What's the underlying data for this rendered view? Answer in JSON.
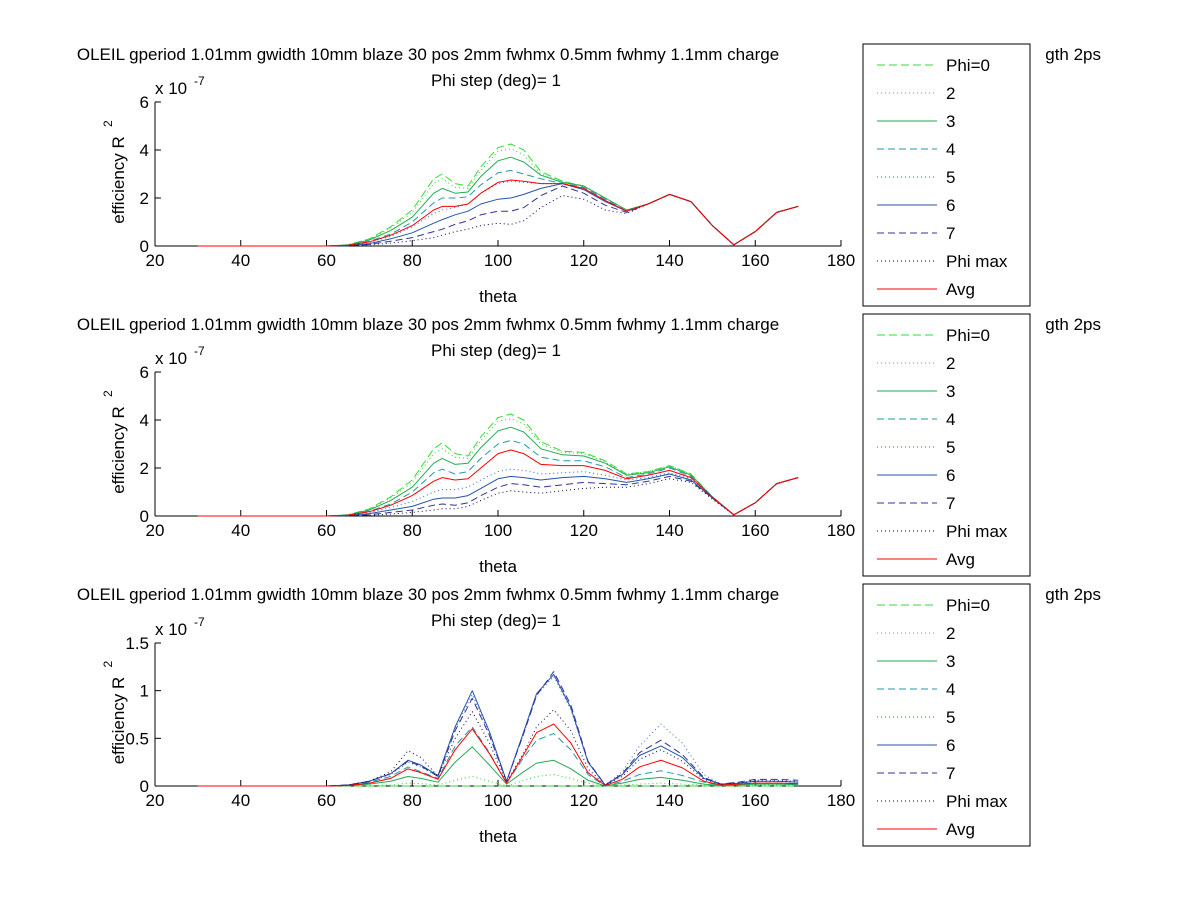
{
  "figure": {
    "title_line1": "OLEIL gperiod 1.01mm gwidth 10mm blaze 30 pos 2mm fwhmx 0.5mm fwhmy 1.1mm charge",
    "title_line1_tail": "gth 2ps",
    "title_line2": "Phi step (deg)= 1"
  },
  "colors": {
    "phi0": "#33dd33",
    "phi2": "#33cc33",
    "phi3": "#22aa55",
    "phi4": "#2299aa",
    "phi5": "#3366cc",
    "phi6": "#2255aa",
    "phi7": "#333399",
    "phimax": "#000055",
    "avg": "#ff0000"
  },
  "chart_data": [
    {
      "type": "line",
      "xlabel": "theta",
      "ylabel": "efficiency R",
      "ylabel_sup": "2",
      "multiplier": "x 10",
      "multiplier_exp": "-7",
      "xlim": [
        20,
        180
      ],
      "ylim": [
        0,
        6
      ],
      "xticks": [
        "20",
        "40",
        "60",
        "80",
        "100",
        "120",
        "140",
        "160",
        "180"
      ],
      "yticks": [
        "0",
        "2",
        "4",
        "6"
      ],
      "legend": [
        "Phi=0",
        "2",
        "3",
        "4",
        "5",
        "6",
        "7",
        "Phi max",
        "Avg"
      ],
      "x": [
        30,
        60,
        65,
        70,
        75,
        80,
        85,
        87,
        90,
        93,
        96,
        100,
        103,
        106,
        110,
        115,
        120,
        125,
        130,
        135,
        140,
        145,
        150,
        155,
        160,
        165,
        170
      ],
      "series": [
        {
          "name": "Phi=0",
          "values": [
            0,
            0,
            0.05,
            0.3,
            0.8,
            1.5,
            2.8,
            3.0,
            2.6,
            2.5,
            3.3,
            4.1,
            4.25,
            4.0,
            3.1,
            2.7,
            2.5,
            2.0,
            1.5,
            1.75,
            2.15,
            1.85,
            0.85,
            0.05,
            0.6,
            1.4,
            1.65
          ]
        },
        {
          "name": "2",
          "values": [
            0,
            0,
            0.05,
            0.28,
            0.75,
            1.4,
            2.6,
            2.8,
            2.45,
            2.4,
            3.15,
            3.95,
            4.05,
            3.8,
            3.0,
            2.7,
            2.5,
            2.0,
            1.5,
            1.75,
            2.15,
            1.85,
            0.85,
            0.05,
            0.6,
            1.4,
            1.65
          ]
        },
        {
          "name": "3",
          "values": [
            0,
            0,
            0.04,
            0.25,
            0.65,
            1.2,
            2.2,
            2.4,
            2.2,
            2.25,
            2.9,
            3.55,
            3.7,
            3.5,
            2.95,
            2.65,
            2.5,
            2.0,
            1.5,
            1.75,
            2.15,
            1.85,
            0.85,
            0.05,
            0.6,
            1.4,
            1.65
          ]
        },
        {
          "name": "4",
          "values": [
            0,
            0,
            0.03,
            0.2,
            0.5,
            1.0,
            1.8,
            2.0,
            2.0,
            2.05,
            2.55,
            3.05,
            3.15,
            3.0,
            2.8,
            2.6,
            2.45,
            1.95,
            1.45,
            1.75,
            2.15,
            1.85,
            0.85,
            0.05,
            0.6,
            1.4,
            1.65
          ]
        },
        {
          "name": "5",
          "values": [
            0,
            0,
            0.03,
            0.15,
            0.4,
            0.8,
            1.35,
            1.5,
            1.6,
            1.75,
            2.2,
            2.6,
            2.7,
            2.65,
            2.6,
            2.6,
            2.4,
            1.9,
            1.45,
            1.75,
            2.15,
            1.85,
            0.85,
            0.05,
            0.6,
            1.4,
            1.65
          ]
        },
        {
          "name": "6",
          "values": [
            0,
            0,
            0.02,
            0.1,
            0.3,
            0.55,
            0.95,
            1.1,
            1.3,
            1.45,
            1.75,
            1.95,
            2.0,
            2.15,
            2.4,
            2.6,
            2.35,
            1.85,
            1.45,
            1.75,
            2.15,
            1.85,
            0.85,
            0.05,
            0.6,
            1.4,
            1.65
          ]
        },
        {
          "name": "7",
          "values": [
            0,
            0,
            0.01,
            0.07,
            0.2,
            0.35,
            0.6,
            0.7,
            0.9,
            1.05,
            1.3,
            1.45,
            1.45,
            1.6,
            2.1,
            2.5,
            2.2,
            1.7,
            1.4,
            1.75,
            2.15,
            1.85,
            0.85,
            0.05,
            0.6,
            1.4,
            1.65
          ]
        },
        {
          "name": "Phi max",
          "values": [
            0,
            0,
            0.01,
            0.05,
            0.12,
            0.22,
            0.35,
            0.45,
            0.6,
            0.7,
            0.85,
            0.95,
            0.9,
            1.05,
            1.6,
            2.1,
            1.95,
            1.5,
            1.35,
            1.75,
            2.15,
            1.85,
            0.85,
            0.05,
            0.6,
            1.4,
            1.65
          ]
        },
        {
          "name": "Avg",
          "values": [
            0,
            0,
            0.03,
            0.17,
            0.45,
            0.85,
            1.5,
            1.65,
            1.65,
            1.75,
            2.2,
            2.65,
            2.75,
            2.7,
            2.6,
            2.6,
            2.4,
            1.9,
            1.45,
            1.75,
            2.15,
            1.85,
            0.85,
            0.05,
            0.6,
            1.4,
            1.65
          ]
        }
      ]
    },
    {
      "type": "line",
      "xlabel": "theta",
      "ylabel": "efficiency R",
      "ylabel_sup": "2",
      "multiplier": "x 10",
      "multiplier_exp": "-7",
      "xlim": [
        20,
        180
      ],
      "ylim": [
        0,
        6
      ],
      "xticks": [
        "20",
        "40",
        "60",
        "80",
        "100",
        "120",
        "140",
        "160",
        "180"
      ],
      "yticks": [
        "0",
        "2",
        "4",
        "6"
      ],
      "legend": [
        "Phi=0",
        "2",
        "3",
        "4",
        "5",
        "6",
        "7",
        "Phi max",
        "Avg"
      ],
      "x": [
        30,
        60,
        65,
        70,
        75,
        80,
        85,
        87,
        90,
        93,
        96,
        100,
        103,
        106,
        110,
        115,
        120,
        125,
        130,
        135,
        140,
        145,
        150,
        155,
        160,
        165,
        170
      ],
      "series": [
        {
          "name": "Phi=0",
          "values": [
            0,
            0,
            0.05,
            0.3,
            0.8,
            1.5,
            2.8,
            3.05,
            2.6,
            2.5,
            3.3,
            4.1,
            4.25,
            4.0,
            3.1,
            2.7,
            2.65,
            2.3,
            1.75,
            1.85,
            2.1,
            1.75,
            0.8,
            0.05,
            0.55,
            1.35,
            1.6
          ]
        },
        {
          "name": "2",
          "values": [
            0,
            0,
            0.05,
            0.28,
            0.75,
            1.4,
            2.6,
            2.8,
            2.45,
            2.4,
            3.15,
            3.95,
            4.05,
            3.85,
            3.0,
            2.65,
            2.6,
            2.25,
            1.75,
            1.85,
            2.1,
            1.75,
            0.8,
            0.05,
            0.55,
            1.35,
            1.6
          ]
        },
        {
          "name": "3",
          "values": [
            0,
            0,
            0.04,
            0.25,
            0.65,
            1.2,
            2.2,
            2.4,
            2.15,
            2.2,
            2.85,
            3.55,
            3.7,
            3.5,
            2.8,
            2.55,
            2.5,
            2.2,
            1.7,
            1.8,
            2.05,
            1.7,
            0.8,
            0.05,
            0.55,
            1.35,
            1.6
          ]
        },
        {
          "name": "4",
          "values": [
            0,
            0,
            0.03,
            0.2,
            0.5,
            1.0,
            1.8,
            1.95,
            1.75,
            1.85,
            2.4,
            3.0,
            3.15,
            3.0,
            2.45,
            2.3,
            2.3,
            2.05,
            1.6,
            1.75,
            2.0,
            1.65,
            0.8,
            0.05,
            0.55,
            1.35,
            1.6
          ]
        },
        {
          "name": "5",
          "values": [
            0,
            0,
            0.03,
            0.15,
            0.35,
            0.6,
            1.0,
            1.1,
            1.1,
            1.2,
            1.5,
            1.85,
            1.95,
            1.9,
            1.75,
            1.8,
            1.85,
            1.7,
            1.5,
            1.6,
            1.8,
            1.55,
            0.8,
            0.05,
            0.55,
            1.35,
            1.6
          ]
        },
        {
          "name": "6",
          "values": [
            0,
            0,
            0.02,
            0.1,
            0.25,
            0.4,
            0.7,
            0.75,
            0.75,
            0.85,
            1.15,
            1.55,
            1.65,
            1.6,
            1.5,
            1.6,
            1.65,
            1.55,
            1.4,
            1.55,
            1.75,
            1.5,
            0.75,
            0.05,
            0.55,
            1.35,
            1.6
          ]
        },
        {
          "name": "7",
          "values": [
            0,
            0,
            0.01,
            0.05,
            0.15,
            0.25,
            0.45,
            0.5,
            0.45,
            0.55,
            0.85,
            1.2,
            1.35,
            1.3,
            1.2,
            1.3,
            1.4,
            1.35,
            1.3,
            1.45,
            1.65,
            1.45,
            0.75,
            0.05,
            0.55,
            1.35,
            1.6
          ]
        },
        {
          "name": "Phi max",
          "values": [
            0,
            0,
            0.01,
            0.03,
            0.08,
            0.15,
            0.25,
            0.3,
            0.3,
            0.4,
            0.65,
            0.95,
            1.05,
            1.0,
            0.95,
            1.05,
            1.15,
            1.2,
            1.2,
            1.35,
            1.55,
            1.4,
            0.7,
            0.05,
            0.55,
            1.35,
            1.6
          ]
        },
        {
          "name": "Avg",
          "values": [
            0,
            0,
            0.03,
            0.18,
            0.45,
            0.85,
            1.45,
            1.6,
            1.5,
            1.55,
            2.0,
            2.6,
            2.75,
            2.6,
            2.15,
            2.1,
            2.1,
            1.9,
            1.55,
            1.7,
            1.9,
            1.6,
            0.78,
            0.05,
            0.55,
            1.35,
            1.6
          ]
        }
      ]
    },
    {
      "type": "line",
      "xlabel": "theta",
      "ylabel": "efficiency R",
      "ylabel_sup": "2",
      "multiplier": "x 10",
      "multiplier_exp": "-7",
      "xlim": [
        20,
        180
      ],
      "ylim": [
        0,
        1.5
      ],
      "xticks": [
        "20",
        "40",
        "60",
        "80",
        "100",
        "120",
        "140",
        "160",
        "180"
      ],
      "yticks": [
        "0",
        "0.5",
        "1",
        "1.5"
      ],
      "legend": [
        "Phi=0",
        "2",
        "3",
        "4",
        "5",
        "6",
        "7",
        "Phi max",
        "Avg"
      ],
      "x": [
        30,
        60,
        65,
        70,
        75,
        79,
        82,
        86,
        90,
        94,
        98,
        102,
        106,
        109,
        113,
        117,
        121,
        125,
        129,
        133,
        138,
        143,
        148,
        152,
        156,
        160,
        165,
        170
      ],
      "series": [
        {
          "name": "Phi=0",
          "values": [
            0,
            0,
            0,
            0,
            0,
            0,
            0,
            0,
            0,
            0,
            0,
            0,
            0,
            0,
            0,
            0,
            0,
            0,
            0,
            0,
            0,
            0,
            0,
            0,
            0,
            0,
            0,
            0
          ]
        },
        {
          "name": "2",
          "values": [
            0,
            0,
            0,
            0.005,
            0.01,
            0.03,
            0.025,
            0.01,
            0.06,
            0.1,
            0.05,
            0,
            0.06,
            0.1,
            0.12,
            0.08,
            0.03,
            0,
            0.01,
            0.02,
            0.03,
            0.02,
            0.01,
            0,
            0,
            0.01,
            0.01,
            0.005
          ]
        },
        {
          "name": "3",
          "values": [
            0,
            0,
            0.005,
            0.02,
            0.05,
            0.1,
            0.08,
            0.04,
            0.25,
            0.41,
            0.22,
            0.02,
            0.15,
            0.24,
            0.27,
            0.18,
            0.06,
            0,
            0.03,
            0.07,
            0.09,
            0.06,
            0.02,
            0.005,
            0.01,
            0.02,
            0.02,
            0.015
          ]
        },
        {
          "name": "4",
          "values": [
            0,
            0,
            0.01,
            0.04,
            0.1,
            0.2,
            0.15,
            0.08,
            0.42,
            0.62,
            0.35,
            0.03,
            0.3,
            0.48,
            0.55,
            0.38,
            0.12,
            0,
            0.05,
            0.12,
            0.16,
            0.11,
            0.04,
            0.01,
            0.02,
            0.03,
            0.03,
            0.02
          ]
        },
        {
          "name": "5",
          "values": [
            0,
            0,
            0.01,
            0.05,
            0.12,
            0.25,
            0.2,
            0.1,
            0.6,
            0.96,
            0.55,
            0.05,
            0.55,
            0.95,
            1.15,
            0.8,
            0.25,
            0.01,
            0.15,
            0.42,
            0.65,
            0.45,
            0.12,
            0.02,
            0.03,
            0.06,
            0.06,
            0.05
          ]
        },
        {
          "name": "6",
          "values": [
            0,
            0,
            0.01,
            0.05,
            0.13,
            0.27,
            0.22,
            0.11,
            0.62,
            1.0,
            0.57,
            0.05,
            0.57,
            0.97,
            1.17,
            0.82,
            0.25,
            0.01,
            0.12,
            0.32,
            0.42,
            0.3,
            0.08,
            0.02,
            0.03,
            0.05,
            0.05,
            0.04
          ]
        },
        {
          "name": "7",
          "values": [
            0,
            0,
            0.01,
            0.05,
            0.13,
            0.26,
            0.21,
            0.1,
            0.58,
            0.92,
            0.53,
            0.05,
            0.55,
            0.95,
            1.2,
            0.85,
            0.26,
            0.01,
            0.13,
            0.35,
            0.48,
            0.33,
            0.09,
            0.02,
            0.04,
            0.07,
            0.07,
            0.06
          ]
        },
        {
          "name": "Phi max",
          "values": [
            0,
            0,
            0.01,
            0.05,
            0.15,
            0.37,
            0.3,
            0.1,
            0.5,
            0.78,
            0.45,
            0.04,
            0.35,
            0.62,
            0.8,
            0.58,
            0.18,
            0.01,
            0.1,
            0.28,
            0.38,
            0.26,
            0.07,
            0.02,
            0.03,
            0.05,
            0.05,
            0.04
          ]
        },
        {
          "name": "Avg",
          "values": [
            0,
            0,
            0.005,
            0.03,
            0.08,
            0.18,
            0.14,
            0.07,
            0.38,
            0.6,
            0.34,
            0.03,
            0.33,
            0.56,
            0.65,
            0.45,
            0.14,
            0.005,
            0.07,
            0.2,
            0.27,
            0.19,
            0.05,
            0.01,
            0.02,
            0.03,
            0.03,
            0.025
          ]
        }
      ]
    }
  ]
}
